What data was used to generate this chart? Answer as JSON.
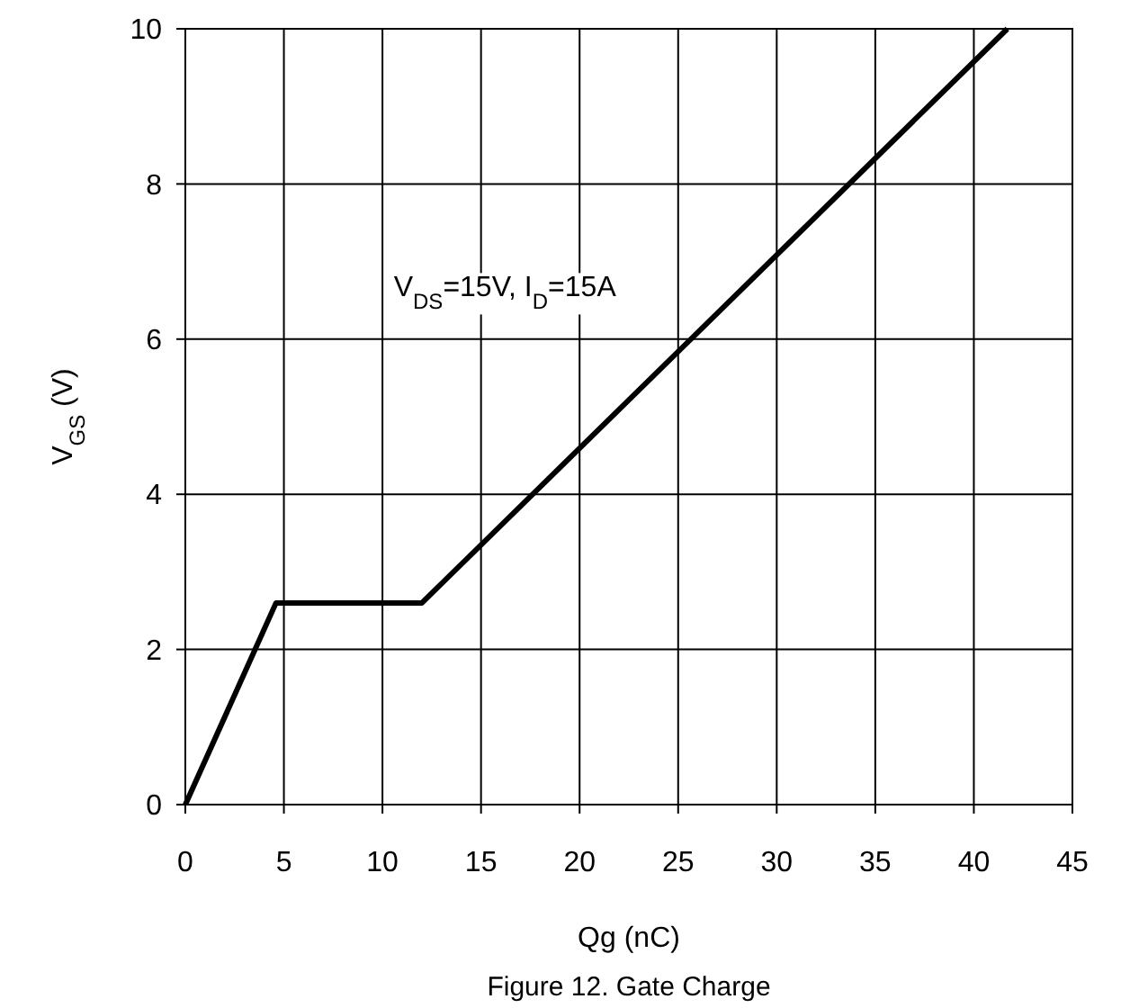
{
  "chart_data": {
    "type": "line",
    "xlabel": "Qg (nC)",
    "ylabel": "V$_{GS}$ (V)",
    "x": [
      0,
      4.6,
      12,
      41.7
    ],
    "series": [
      {
        "color": "#000000",
        "values": [
          0,
          2.6,
          2.6,
          10
        ]
      }
    ],
    "xlim": [
      0,
      45
    ],
    "xticks": [
      0,
      5,
      10,
      15,
      20,
      25,
      30,
      35,
      40,
      45
    ],
    "ylim": [
      0,
      10
    ],
    "yticks": [
      0,
      2,
      4,
      6,
      8,
      10
    ],
    "grid": true,
    "marker": "none",
    "line_style": "solid",
    "annotations": [
      "V$_{DS}$=15V, I$_{D}$=15A",
      "Figure 12. Gate Charge"
    ]
  }
}
